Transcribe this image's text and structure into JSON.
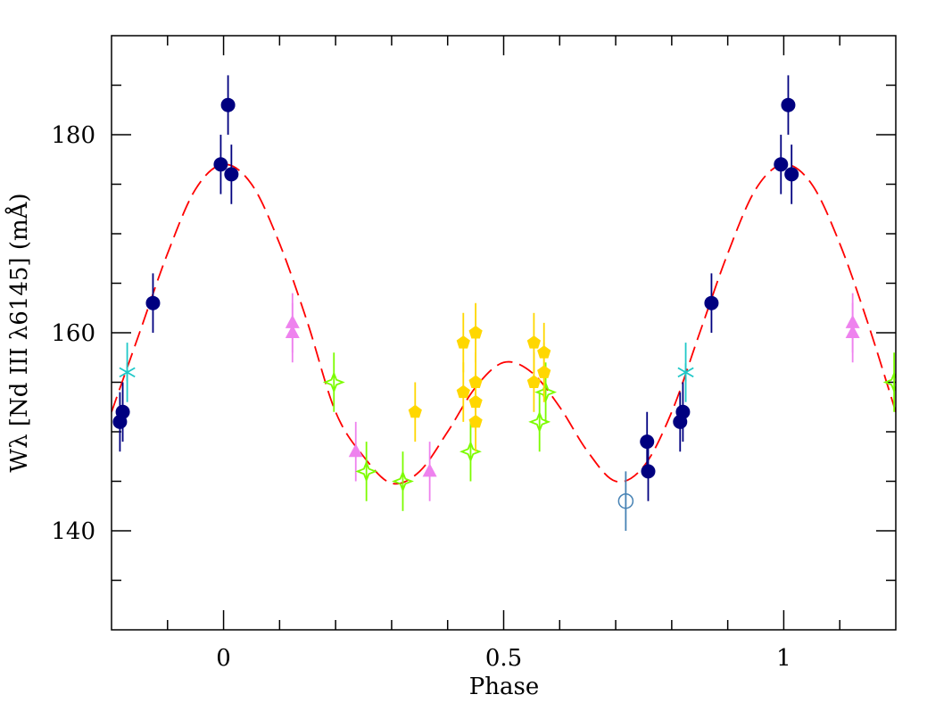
{
  "chart_data": {
    "type": "scatter",
    "x_label": "Phase",
    "y_label": "Wλ [Nd III λ6145] (mÅ)",
    "xlim": [
      -0.2,
      1.2
    ],
    "ylim": [
      130,
      190
    ],
    "xticks": [
      0,
      0.5,
      1
    ],
    "yticks": [
      140,
      160,
      180
    ],
    "xminorticks": [
      -0.1,
      0.1,
      0.2,
      0.3,
      0.4,
      0.6,
      0.7,
      0.8,
      0.9,
      1.1
    ],
    "yminorticks": [
      135,
      145,
      150,
      155,
      165,
      170,
      175,
      185
    ],
    "series": [
      {
        "color": "#000080",
        "marker": "filled-circle",
        "x": [
          -0.185,
          -0.18,
          -0.126,
          -0.005,
          0.008,
          0.014,
          0.756,
          0.758,
          0.815,
          0.82,
          0.871,
          0.995,
          1.008,
          1.014
        ],
        "values": [
          151,
          152,
          163,
          177,
          183,
          176,
          149,
          146,
          151,
          152,
          163,
          177,
          183,
          176
        ],
        "errors": [
          3,
          3,
          3,
          3,
          3,
          3,
          3,
          3,
          3,
          3,
          3,
          3,
          3,
          3
        ]
      },
      {
        "color": "#20c8c8",
        "marker": "asterisk",
        "x": [
          -0.172,
          0.825
        ],
        "values": [
          156,
          156
        ],
        "errors": [
          3,
          3
        ]
      },
      {
        "color": "#ee82ee",
        "marker": "triangle",
        "x": [
          0.123,
          0.123,
          0.236,
          0.368,
          1.123,
          1.123
        ],
        "values": [
          161,
          160,
          148,
          146,
          161,
          160
        ],
        "errors": [
          3,
          3,
          3,
          3,
          3,
          3
        ]
      },
      {
        "color": "#7cfc00",
        "marker": "open-star",
        "x": [
          0.197,
          0.255,
          0.32,
          0.441,
          0.564,
          0.575,
          1.197
        ],
        "values": [
          155,
          146,
          145,
          148,
          151,
          154,
          155
        ],
        "errors": [
          3,
          3,
          3,
          3,
          3,
          3,
          3
        ]
      },
      {
        "color": "#ffd700",
        "marker": "pentagon",
        "x": [
          0.342,
          0.428,
          0.428,
          0.45,
          0.45,
          0.45,
          0.45,
          0.554,
          0.554,
          0.572,
          0.572
        ],
        "values": [
          152,
          159,
          154,
          160,
          155,
          153,
          151,
          159,
          155,
          158,
          156
        ],
        "errors": [
          3,
          3,
          3,
          3,
          3,
          3,
          3,
          3,
          3,
          3,
          3
        ]
      },
      {
        "color": "#4682b4",
        "marker": "open-circle",
        "x": [
          0.718
        ],
        "values": [
          143
        ],
        "errors": [
          3
        ]
      }
    ],
    "fit": {
      "color": "#ff0000",
      "dashed": true,
      "x": [
        -0.2,
        -0.15,
        -0.1,
        -0.05,
        0,
        0.05,
        0.1,
        0.15,
        0.2,
        0.25,
        0.3,
        0.35,
        0.4,
        0.45,
        0.5,
        0.55,
        0.6,
        0.65,
        0.7,
        0.75,
        0.8,
        0.85,
        0.9,
        0.95,
        1,
        1.05,
        1.1,
        1.15,
        1.2
      ],
      "values": [
        152,
        160,
        168,
        174.5,
        177,
        175,
        169,
        161,
        152,
        147.5,
        144.8,
        146,
        150,
        154.5,
        157,
        156,
        152.5,
        148,
        145,
        146.5,
        152,
        160,
        168,
        174.5,
        177,
        175,
        169,
        161,
        152
      ]
    }
  }
}
